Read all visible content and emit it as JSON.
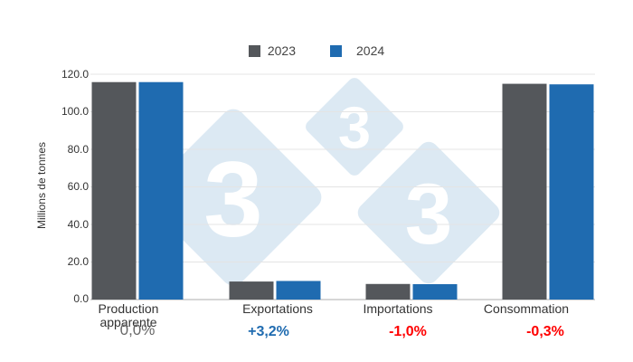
{
  "chart_data": {
    "type": "bar",
    "title": "",
    "xlabel": "",
    "ylabel": "Millions de tonnes",
    "ylim": [
      0,
      120
    ],
    "yticks": [
      "0.0",
      "20.0",
      "40.0",
      "60.0",
      "80.0",
      "100.0",
      "120.0"
    ],
    "grid": true,
    "legend_position": "top",
    "categories": [
      "Production apparente",
      "Exportations",
      "Importations",
      "Consommation"
    ],
    "series": [
      {
        "name": "2023",
        "color": "#54575b",
        "values": [
          115.8,
          9.6,
          8.3,
          114.9
        ]
      },
      {
        "name": "2024",
        "color": "#1f6bb0",
        "values": [
          115.8,
          9.9,
          8.2,
          114.6
        ]
      }
    ],
    "annotations": [
      {
        "category": "Production apparente",
        "text": "0,0%",
        "color": "#666666"
      },
      {
        "category": "Exportations",
        "text": "+3,2%",
        "color": "#1f6bb0"
      },
      {
        "category": "Importations",
        "text": "-1,0%",
        "color": "#ff0000"
      },
      {
        "category": "Consommation",
        "text": "-0,3%",
        "color": "#ff0000"
      }
    ]
  },
  "legend": {
    "items": [
      {
        "label": "2023",
        "color": "#54575b"
      },
      {
        "label": "2024",
        "color": "#1f6bb0"
      }
    ]
  },
  "axis": {
    "ylabel": "Millions de tonnes"
  },
  "xlabels": [
    "Production apparente",
    "Exportations",
    "Importations",
    "Consommation"
  ],
  "pcts": [
    "0,0%",
    "+3,2%",
    "-1,0%",
    "-0,3%"
  ],
  "watermark": {
    "glyph": "3",
    "color": "#dce9f3"
  }
}
